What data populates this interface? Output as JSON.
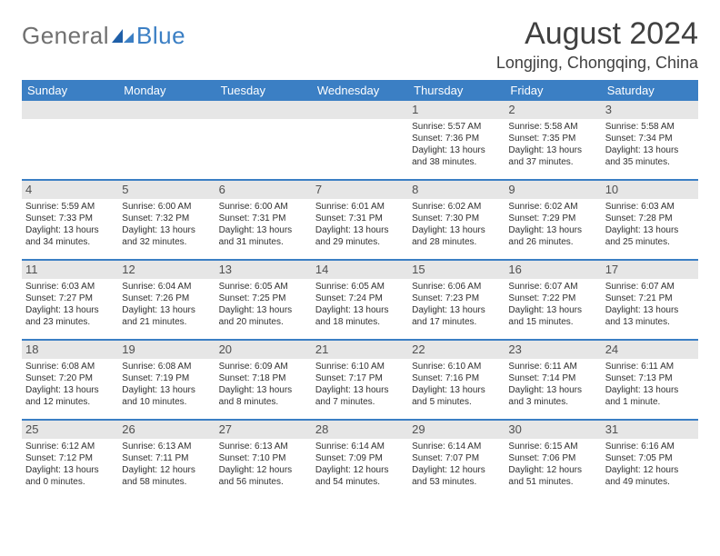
{
  "logo": {
    "text1": "General",
    "text2": "Blue"
  },
  "title": "August 2024",
  "location": "Longjing, Chongqing, China",
  "day_headers": [
    "Sunday",
    "Monday",
    "Tuesday",
    "Wednesday",
    "Thursday",
    "Friday",
    "Saturday"
  ],
  "colors": {
    "header_bg": "#3b7fc4",
    "header_fg": "#ffffff",
    "daynum_bg": "#e6e6e6",
    "border": "#3b7fc4",
    "logo_gray": "#707070",
    "logo_blue": "#3b7fc4",
    "text": "#303030"
  },
  "weeks": [
    [
      {
        "n": "",
        "sr": "",
        "ss": "",
        "dl": ""
      },
      {
        "n": "",
        "sr": "",
        "ss": "",
        "dl": ""
      },
      {
        "n": "",
        "sr": "",
        "ss": "",
        "dl": ""
      },
      {
        "n": "",
        "sr": "",
        "ss": "",
        "dl": ""
      },
      {
        "n": "1",
        "sr": "Sunrise: 5:57 AM",
        "ss": "Sunset: 7:36 PM",
        "dl": "Daylight: 13 hours and 38 minutes."
      },
      {
        "n": "2",
        "sr": "Sunrise: 5:58 AM",
        "ss": "Sunset: 7:35 PM",
        "dl": "Daylight: 13 hours and 37 minutes."
      },
      {
        "n": "3",
        "sr": "Sunrise: 5:58 AM",
        "ss": "Sunset: 7:34 PM",
        "dl": "Daylight: 13 hours and 35 minutes."
      }
    ],
    [
      {
        "n": "4",
        "sr": "Sunrise: 5:59 AM",
        "ss": "Sunset: 7:33 PM",
        "dl": "Daylight: 13 hours and 34 minutes."
      },
      {
        "n": "5",
        "sr": "Sunrise: 6:00 AM",
        "ss": "Sunset: 7:32 PM",
        "dl": "Daylight: 13 hours and 32 minutes."
      },
      {
        "n": "6",
        "sr": "Sunrise: 6:00 AM",
        "ss": "Sunset: 7:31 PM",
        "dl": "Daylight: 13 hours and 31 minutes."
      },
      {
        "n": "7",
        "sr": "Sunrise: 6:01 AM",
        "ss": "Sunset: 7:31 PM",
        "dl": "Daylight: 13 hours and 29 minutes."
      },
      {
        "n": "8",
        "sr": "Sunrise: 6:02 AM",
        "ss": "Sunset: 7:30 PM",
        "dl": "Daylight: 13 hours and 28 minutes."
      },
      {
        "n": "9",
        "sr": "Sunrise: 6:02 AM",
        "ss": "Sunset: 7:29 PM",
        "dl": "Daylight: 13 hours and 26 minutes."
      },
      {
        "n": "10",
        "sr": "Sunrise: 6:03 AM",
        "ss": "Sunset: 7:28 PM",
        "dl": "Daylight: 13 hours and 25 minutes."
      }
    ],
    [
      {
        "n": "11",
        "sr": "Sunrise: 6:03 AM",
        "ss": "Sunset: 7:27 PM",
        "dl": "Daylight: 13 hours and 23 minutes."
      },
      {
        "n": "12",
        "sr": "Sunrise: 6:04 AM",
        "ss": "Sunset: 7:26 PM",
        "dl": "Daylight: 13 hours and 21 minutes."
      },
      {
        "n": "13",
        "sr": "Sunrise: 6:05 AM",
        "ss": "Sunset: 7:25 PM",
        "dl": "Daylight: 13 hours and 20 minutes."
      },
      {
        "n": "14",
        "sr": "Sunrise: 6:05 AM",
        "ss": "Sunset: 7:24 PM",
        "dl": "Daylight: 13 hours and 18 minutes."
      },
      {
        "n": "15",
        "sr": "Sunrise: 6:06 AM",
        "ss": "Sunset: 7:23 PM",
        "dl": "Daylight: 13 hours and 17 minutes."
      },
      {
        "n": "16",
        "sr": "Sunrise: 6:07 AM",
        "ss": "Sunset: 7:22 PM",
        "dl": "Daylight: 13 hours and 15 minutes."
      },
      {
        "n": "17",
        "sr": "Sunrise: 6:07 AM",
        "ss": "Sunset: 7:21 PM",
        "dl": "Daylight: 13 hours and 13 minutes."
      }
    ],
    [
      {
        "n": "18",
        "sr": "Sunrise: 6:08 AM",
        "ss": "Sunset: 7:20 PM",
        "dl": "Daylight: 13 hours and 12 minutes."
      },
      {
        "n": "19",
        "sr": "Sunrise: 6:08 AM",
        "ss": "Sunset: 7:19 PM",
        "dl": "Daylight: 13 hours and 10 minutes."
      },
      {
        "n": "20",
        "sr": "Sunrise: 6:09 AM",
        "ss": "Sunset: 7:18 PM",
        "dl": "Daylight: 13 hours and 8 minutes."
      },
      {
        "n": "21",
        "sr": "Sunrise: 6:10 AM",
        "ss": "Sunset: 7:17 PM",
        "dl": "Daylight: 13 hours and 7 minutes."
      },
      {
        "n": "22",
        "sr": "Sunrise: 6:10 AM",
        "ss": "Sunset: 7:16 PM",
        "dl": "Daylight: 13 hours and 5 minutes."
      },
      {
        "n": "23",
        "sr": "Sunrise: 6:11 AM",
        "ss": "Sunset: 7:14 PM",
        "dl": "Daylight: 13 hours and 3 minutes."
      },
      {
        "n": "24",
        "sr": "Sunrise: 6:11 AM",
        "ss": "Sunset: 7:13 PM",
        "dl": "Daylight: 13 hours and 1 minute."
      }
    ],
    [
      {
        "n": "25",
        "sr": "Sunrise: 6:12 AM",
        "ss": "Sunset: 7:12 PM",
        "dl": "Daylight: 13 hours and 0 minutes."
      },
      {
        "n": "26",
        "sr": "Sunrise: 6:13 AM",
        "ss": "Sunset: 7:11 PM",
        "dl": "Daylight: 12 hours and 58 minutes."
      },
      {
        "n": "27",
        "sr": "Sunrise: 6:13 AM",
        "ss": "Sunset: 7:10 PM",
        "dl": "Daylight: 12 hours and 56 minutes."
      },
      {
        "n": "28",
        "sr": "Sunrise: 6:14 AM",
        "ss": "Sunset: 7:09 PM",
        "dl": "Daylight: 12 hours and 54 minutes."
      },
      {
        "n": "29",
        "sr": "Sunrise: 6:14 AM",
        "ss": "Sunset: 7:07 PM",
        "dl": "Daylight: 12 hours and 53 minutes."
      },
      {
        "n": "30",
        "sr": "Sunrise: 6:15 AM",
        "ss": "Sunset: 7:06 PM",
        "dl": "Daylight: 12 hours and 51 minutes."
      },
      {
        "n": "31",
        "sr": "Sunrise: 6:16 AM",
        "ss": "Sunset: 7:05 PM",
        "dl": "Daylight: 12 hours and 49 minutes."
      }
    ]
  ]
}
